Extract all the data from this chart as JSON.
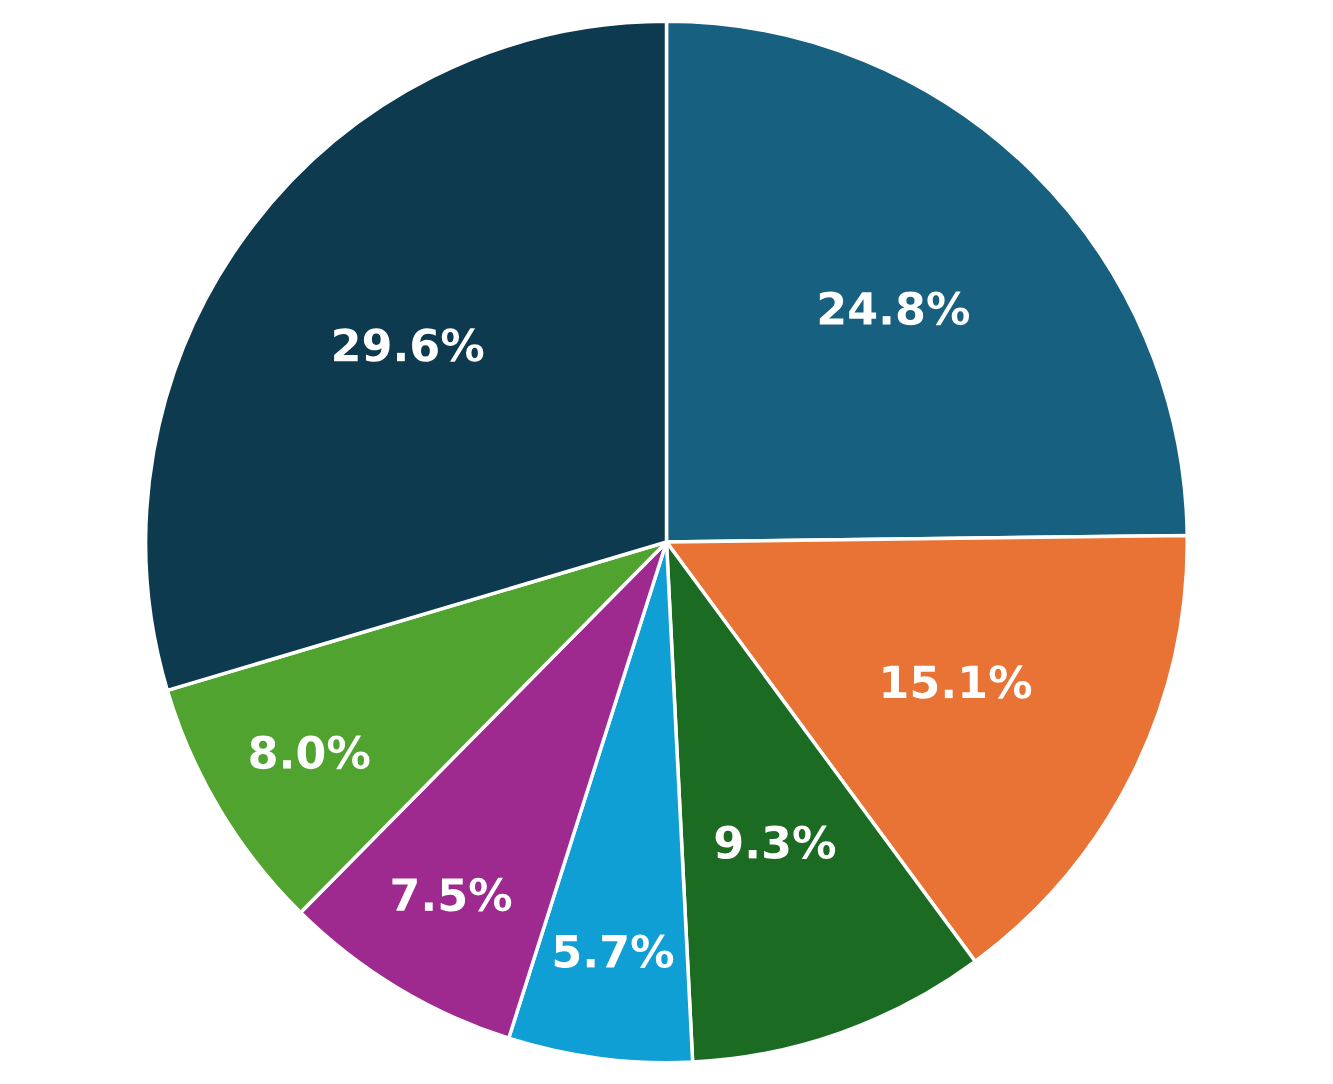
{
  "chart_data": {
    "type": "pie",
    "categories": [
      null,
      null,
      null,
      null,
      null,
      null,
      null
    ],
    "values": [
      24.8,
      15.1,
      9.3,
      5.7,
      7.5,
      8.0,
      29.6
    ],
    "value_labels": [
      "24.8%",
      "15.1%",
      "9.3%",
      "5.7%",
      "7.5%",
      "8.0%",
      "29.6%"
    ],
    "colors": [
      "#17607f",
      "#e97334",
      "#1b6b23",
      "#109fd4",
      "#9e298f",
      "#50a32f",
      "#0d3a4f"
    ]
  }
}
